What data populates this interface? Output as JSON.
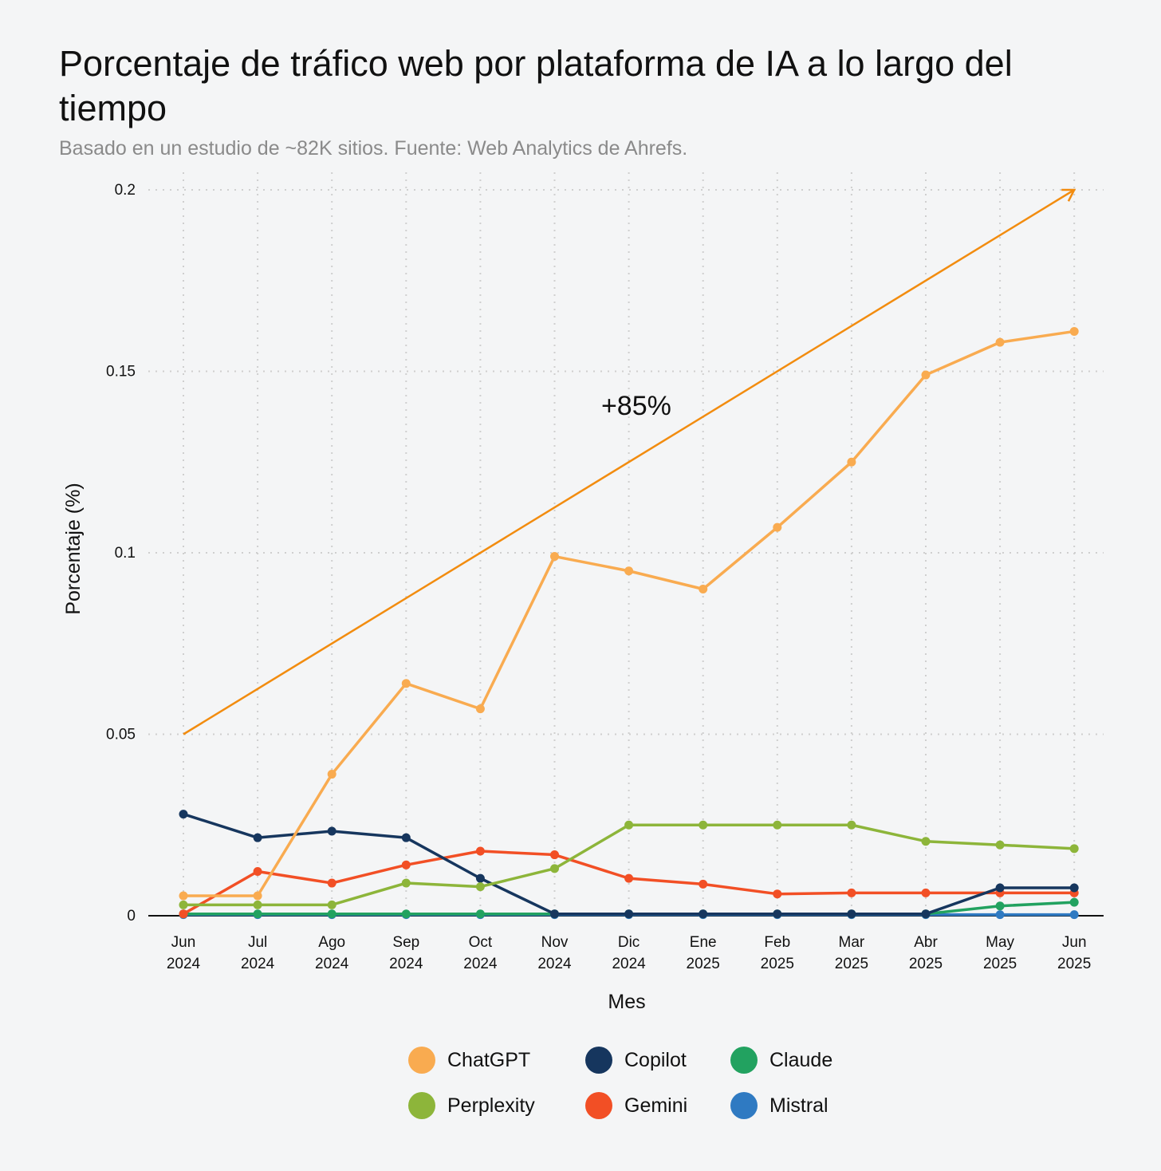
{
  "title": "Porcentaje de tráfico web por plataforma de IA a lo largo del tiempo",
  "subtitle": "Basado en un estudio de ~82K sitios. Fuente: Web Analytics de Ahrefs.",
  "chart_data": {
    "type": "line",
    "xlabel": "Mes",
    "ylabel": "Porcentaje (%)",
    "ylim": [
      0,
      0.2
    ],
    "yticks": [
      "0",
      "0.05",
      "0.1",
      "0.15",
      "0.2"
    ],
    "grid": true,
    "legend_position": "bottom",
    "categories": [
      {
        "month": "Jun",
        "year": "2024"
      },
      {
        "month": "Jul",
        "year": "2024"
      },
      {
        "month": "Ago",
        "year": "2024"
      },
      {
        "month": "Sep",
        "year": "2024"
      },
      {
        "month": "Oct",
        "year": "2024"
      },
      {
        "month": "Nov",
        "year": "2024"
      },
      {
        "month": "Dic",
        "year": "2024"
      },
      {
        "month": "Ene",
        "year": "2025"
      },
      {
        "month": "Feb",
        "year": "2025"
      },
      {
        "month": "Mar",
        "year": "2025"
      },
      {
        "month": "Abr",
        "year": "2025"
      },
      {
        "month": "May",
        "year": "2025"
      },
      {
        "month": "Jun",
        "year": "2025"
      }
    ],
    "series": [
      {
        "name": "ChatGPT",
        "color": "#f9ab50",
        "values": [
          0.0055,
          0.0055,
          0.039,
          0.064,
          0.057,
          0.099,
          0.095,
          0.09,
          0.107,
          0.125,
          0.149,
          0.158,
          0.161
        ]
      },
      {
        "name": "Perplexity",
        "color": "#8db53a",
        "values": [
          0.003,
          0.003,
          0.003,
          0.009,
          0.008,
          0.013,
          0.025,
          0.025,
          0.025,
          0.025,
          0.0205,
          0.0195,
          0.0185
        ]
      },
      {
        "name": "Copilot",
        "color": "#16365e",
        "values": [
          0.028,
          0.0215,
          0.0233,
          0.0215,
          0.0103,
          0.0005,
          0.0005,
          0.0005,
          0.0005,
          0.0005,
          0.0005,
          0.0077,
          0.0077
        ]
      },
      {
        "name": "Gemini",
        "color": "#f24f25",
        "values": [
          0.0005,
          0.0122,
          0.009,
          0.014,
          0.0178,
          0.0168,
          0.0103,
          0.0087,
          0.006,
          0.0063,
          0.0063,
          0.0063,
          0.0063
        ]
      },
      {
        "name": "Claude",
        "color": "#22a260",
        "values": [
          0.0005,
          0.0005,
          0.0005,
          0.0005,
          0.0005,
          0.0005,
          0.0005,
          0.0005,
          0.0005,
          0.0005,
          0.0005,
          0.0027,
          0.0037
        ]
      },
      {
        "name": "Mistral",
        "color": "#2f7ac2",
        "values": [
          0.0003,
          0.0003,
          0.0003,
          0.0003,
          0.0003,
          0.0003,
          0.0003,
          0.0003,
          0.0003,
          0.0003,
          0.0003,
          0.0003,
          0.0003
        ]
      }
    ],
    "trend": {
      "label": "+85%",
      "color": "#f28c0f",
      "from": [
        0,
        0.05
      ],
      "to": [
        12,
        0.2
      ],
      "label_at": [
        6.1,
        0.138
      ]
    },
    "legend_order": [
      "ChatGPT",
      "Copilot",
      "Claude",
      "Perplexity",
      "Gemini",
      "Mistral"
    ]
  }
}
